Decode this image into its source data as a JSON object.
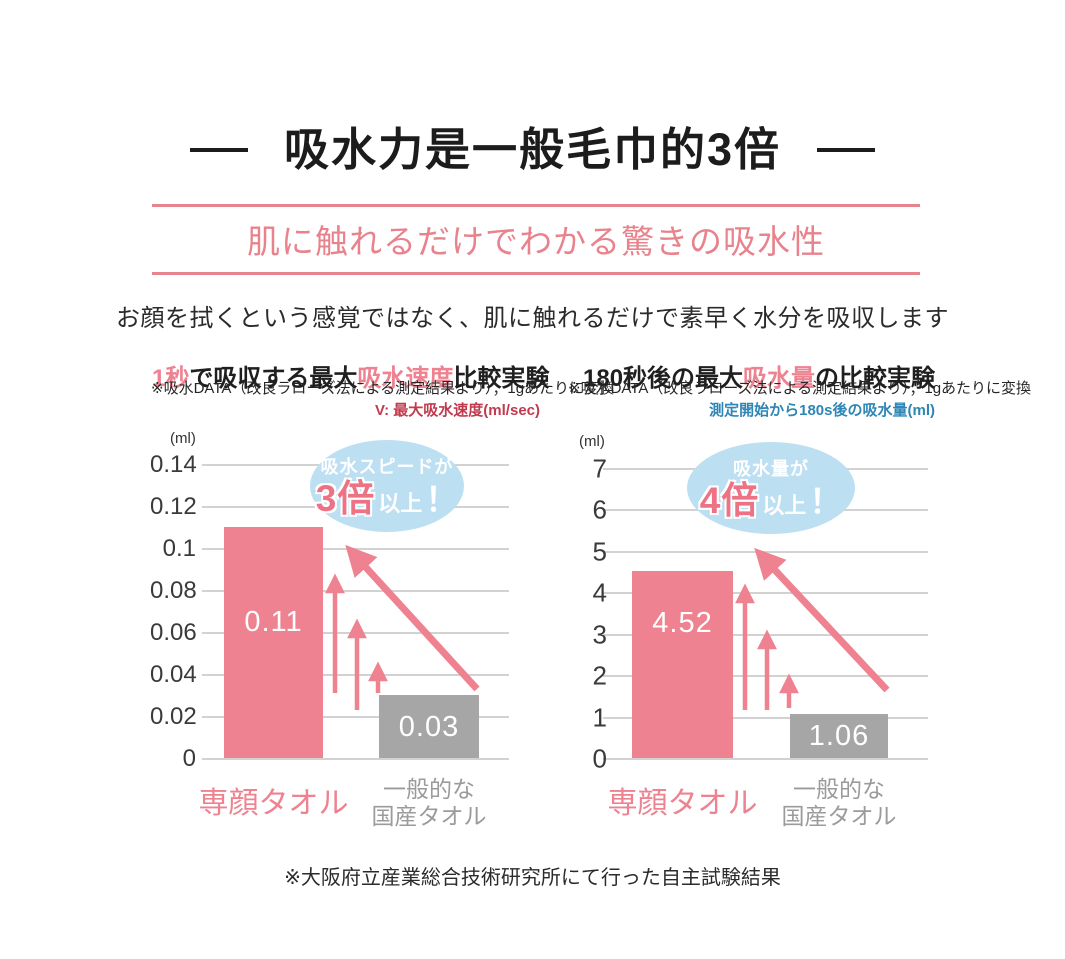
{
  "header": {
    "title": "吸水力是一般毛巾的3倍",
    "banner": "肌に触れるだけでわかる驚きの吸水性",
    "subtitle": "お顔を拭くという感覚ではなく、肌に触れるだけで素早く水分を吸収します"
  },
  "footer": {
    "note": "※大阪府立産業総合技術研究所にて行った自主試験結果"
  },
  "colors": {
    "accent_pink": "#ee8290",
    "banner_pink": "#e8838d",
    "bar_gray": "#a6a6a6",
    "category_gray": "#9b9b9b",
    "bubble_blue": "#bddff2",
    "bubble_big_pink": "#ed7384",
    "axis_note_red": "#c13a4d",
    "axis_note_blue": "#2e86b5",
    "grid_gray": "#d2d2d2"
  },
  "chart_data": [
    {
      "type": "bar",
      "title_segments": [
        {
          "text": "1秒",
          "accent": true
        },
        {
          "text": "で吸収する最大",
          "accent": false
        },
        {
          "text": "吸水速度",
          "accent": true
        },
        {
          "text": "比較実験",
          "accent": false
        }
      ],
      "note": "※吸水DATA（改良ラローズ法による測定結果より）；1gあたりに変換",
      "axis_note": "V: 最大吸水速度(ml/sec)",
      "unit": "(ml)",
      "yticks": [
        "0.14",
        "0.12",
        "0.1",
        "0.08",
        "0.06",
        "0.04",
        "0.02",
        "0"
      ],
      "ylim": [
        0,
        0.14
      ],
      "grid": true,
      "categories": [
        [
          "専顔タオル"
        ],
        [
          "一般的な",
          "国産タオル"
        ]
      ],
      "values": [
        0.11,
        0.03
      ],
      "value_labels": [
        "0.11",
        "0.03"
      ],
      "callout": {
        "line1": "吸水スピードが",
        "big": "3倍",
        "suffix": "以上",
        "bang": "！"
      }
    },
    {
      "type": "bar",
      "title_segments": [
        {
          "text": "180秒後の最大",
          "accent": false
        },
        {
          "text": "吸水量",
          "accent": true
        },
        {
          "text": "の比較実験",
          "accent": false
        }
      ],
      "note": "※吸水DATA（改良ラローズ法による測定結果より）；1gあたりに変換",
      "axis_note": "測定開始から180s後の吸水量(ml)",
      "unit": "(ml)",
      "yticks": [
        "7",
        "6",
        "5",
        "4",
        "3",
        "2",
        "1",
        "0"
      ],
      "ylim": [
        0,
        7
      ],
      "grid": true,
      "categories": [
        [
          "専顔タオル"
        ],
        [
          "一般的な",
          "国産タオル"
        ]
      ],
      "values": [
        4.52,
        1.06
      ],
      "value_labels": [
        "4.52",
        "1.06"
      ],
      "callout": {
        "line1": "吸水量が",
        "big": "4倍",
        "suffix": "以上",
        "bang": "！"
      }
    }
  ]
}
